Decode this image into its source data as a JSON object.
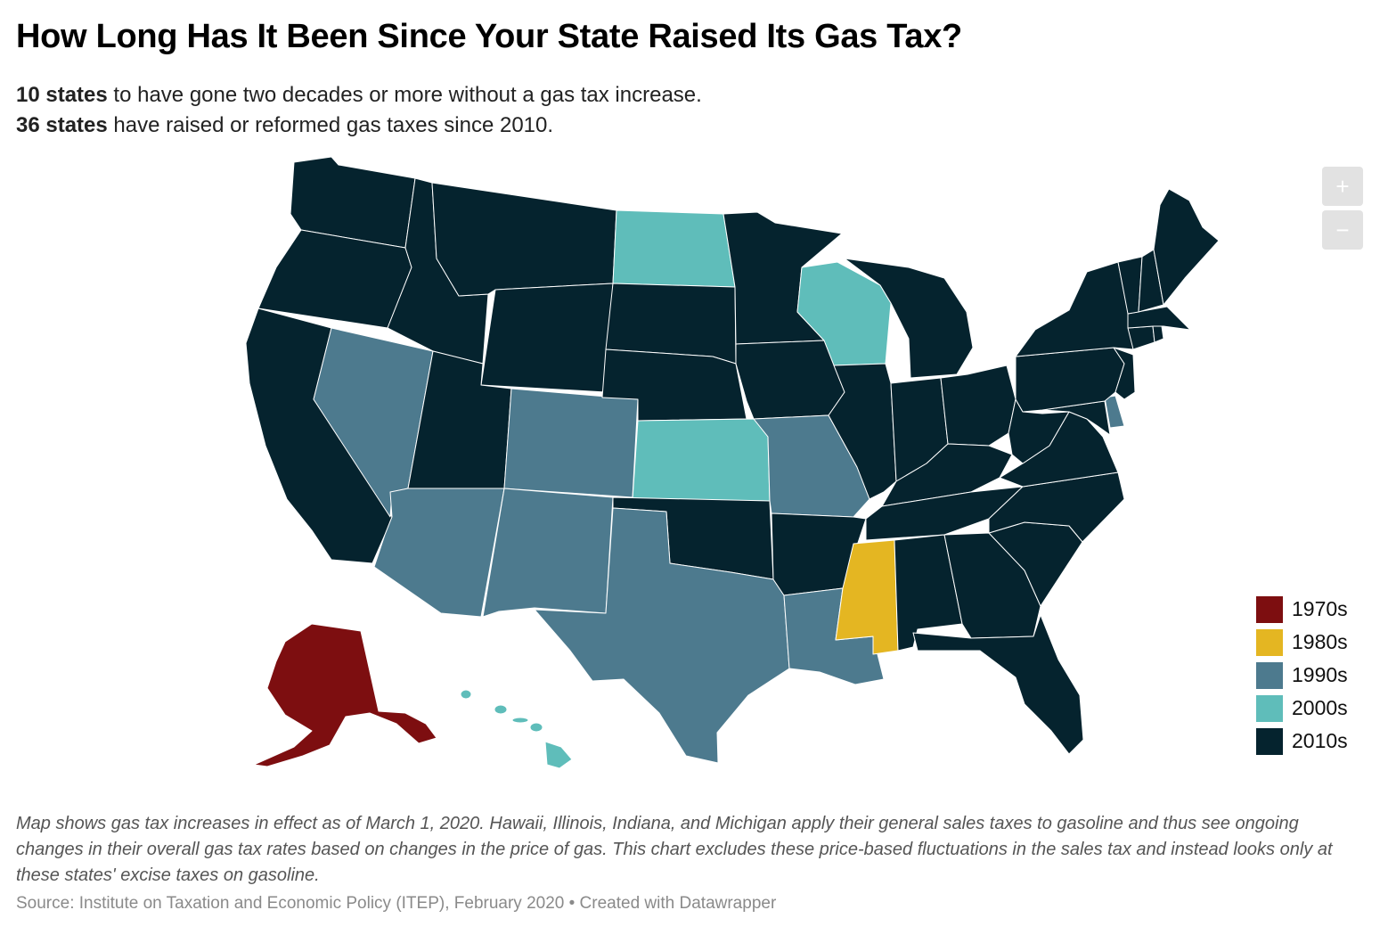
{
  "title": "How Long Has It Been Since Your State Raised Its Gas Tax?",
  "subtitle": {
    "line1_bold": "10 states",
    "line1_rest": " to have gone two decades or more without a gas tax increase.",
    "line2_bold": "36 states",
    "line2_rest": " have raised or reformed gas taxes since 2010."
  },
  "zoom": {
    "in_label": "+",
    "out_label": "−"
  },
  "legend": [
    {
      "label": "1970s",
      "color": "#7d0e10"
    },
    {
      "label": "1980s",
      "color": "#e4b622"
    },
    {
      "label": "1990s",
      "color": "#4d7a8e"
    },
    {
      "label": "2000s",
      "color": "#5fbdba"
    },
    {
      "label": "2010s",
      "color": "#05232e"
    }
  ],
  "state_decade": {
    "AK": "1970s",
    "MS": "1980s",
    "NV": "1990s",
    "AZ": "1990s",
    "CO": "1990s",
    "NM": "1990s",
    "TX": "1990s",
    "MO": "1990s",
    "LA": "1990s",
    "DE": "1990s",
    "ND": "2000s",
    "KS": "2000s",
    "WI": "2000s",
    "HI": "2000s",
    "WA": "2010s",
    "OR": "2010s",
    "CA": "2010s",
    "ID": "2010s",
    "MT": "2010s",
    "WY": "2010s",
    "UT": "2010s",
    "SD": "2010s",
    "NE": "2010s",
    "OK": "2010s",
    "MN": "2010s",
    "IA": "2010s",
    "AR": "2010s",
    "IL": "2010s",
    "MI": "2010s",
    "IN": "2010s",
    "OH": "2010s",
    "KY": "2010s",
    "TN": "2010s",
    "AL": "2010s",
    "GA": "2010s",
    "FL": "2010s",
    "SC": "2010s",
    "NC": "2010s",
    "VA": "2010s",
    "WV": "2010s",
    "MD": "2010s",
    "PA": "2010s",
    "NJ": "2010s",
    "NY": "2010s",
    "CT": "2010s",
    "RI": "2010s",
    "MA": "2010s",
    "VT": "2010s",
    "NH": "2010s",
    "ME": "2010s"
  },
  "note": "Map shows gas tax increases in effect as of March 1, 2020. Hawaii, Illinois, Indiana, and Michigan apply their general sales taxes to gasoline and thus see ongoing changes in their overall gas tax rates based on changes in the price of gas. This chart excludes these price-based fluctuations in the sales tax and instead looks only at these states' excise taxes on gasoline.",
  "source": "Source: Institute on Taxation and Economic Policy (ITEP), February 2020 • Created with Datawrapper"
}
